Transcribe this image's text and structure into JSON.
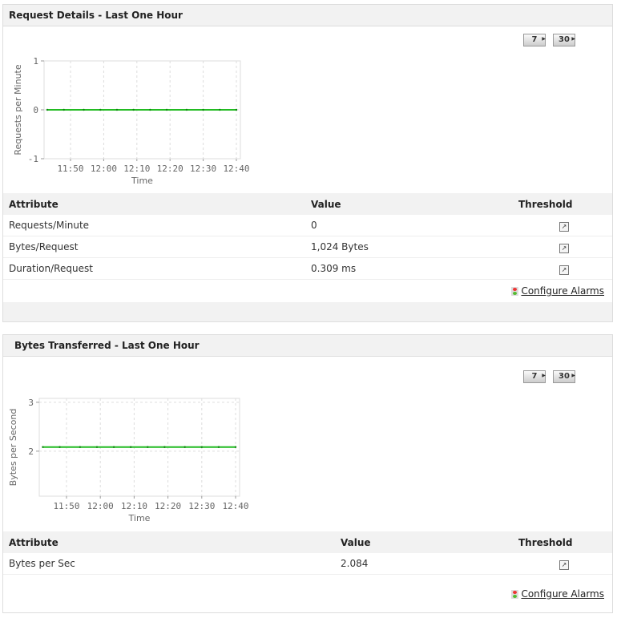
{
  "panels": [
    {
      "title": "Request Details - Last One Hour",
      "btn7": "7",
      "btn30": "30",
      "table": {
        "headers": [
          "Attribute",
          "Value",
          "Threshold"
        ],
        "rows": [
          [
            "Requests/Minute",
            "0"
          ],
          [
            "Bytes/Request",
            "1,024 Bytes"
          ],
          [
            "Duration/Request",
            "0.309 ms"
          ]
        ]
      },
      "configure_alarms": "Configure Alarms"
    },
    {
      "title": "Bytes Transferred - Last One Hour",
      "btn7": "7",
      "btn30": "30",
      "table": {
        "headers": [
          "Attribute",
          "Value",
          "Threshold"
        ],
        "rows": [
          [
            "Bytes per Sec",
            "2.084"
          ]
        ]
      },
      "configure_alarms": "Configure Alarms"
    }
  ],
  "chart_data": [
    {
      "type": "line",
      "xlabel": "Time",
      "ylabel": "Requests per Minute",
      "yticks": [
        "1",
        "0",
        "-1"
      ],
      "ylim": [
        -1,
        1
      ],
      "xticks": [
        "11:50",
        "12:00",
        "12:10",
        "12:20",
        "12:30",
        "12:40"
      ],
      "grid": true,
      "color": "#22bb22",
      "x": [
        "11:43",
        "11:48",
        "11:54",
        "11:59",
        "12:04",
        "12:09",
        "12:14",
        "12:19",
        "12:25",
        "12:30",
        "12:35",
        "12:40"
      ],
      "values": [
        0,
        0,
        0,
        0,
        0,
        0,
        0,
        0,
        0,
        0,
        0,
        0
      ]
    },
    {
      "type": "line",
      "xlabel": "Time",
      "ylabel": "Bytes per Second",
      "yticks": [
        "3",
        "2"
      ],
      "ylim": [
        1.08,
        3.08
      ],
      "xticks": [
        "11:50",
        "12:00",
        "12:10",
        "12:20",
        "12:30",
        "12:40"
      ],
      "grid": true,
      "color": "#22bb22",
      "x": [
        "11:43",
        "11:48",
        "11:54",
        "11:59",
        "12:04",
        "12:09",
        "12:14",
        "12:19",
        "12:25",
        "12:30",
        "12:35",
        "12:40"
      ],
      "values": [
        2.084,
        2.084,
        2.084,
        2.084,
        2.084,
        2.084,
        2.084,
        2.084,
        2.084,
        2.084,
        2.084,
        2.084
      ]
    }
  ]
}
